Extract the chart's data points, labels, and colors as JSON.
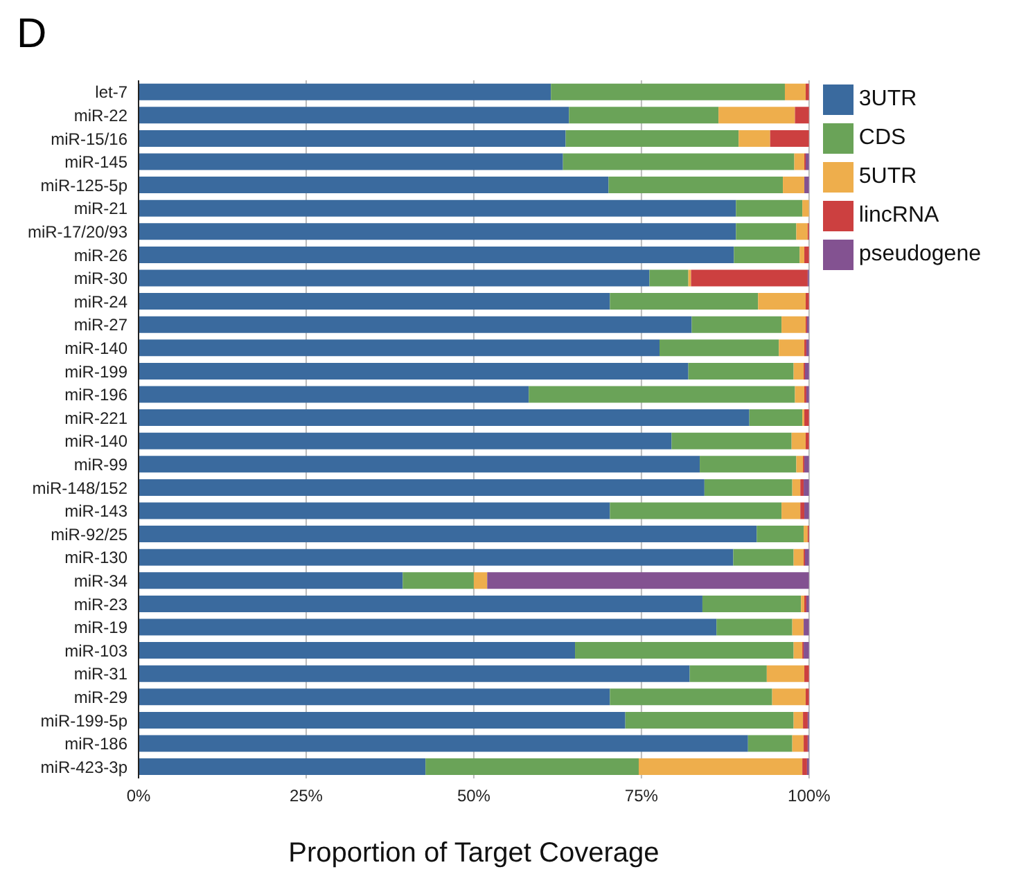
{
  "chart_data": {
    "type": "bar",
    "title": "D",
    "orientation": "horizontal",
    "stacked": true,
    "xlabel": "Proportion of Target Coverage",
    "grid": "x",
    "legend": "top right",
    "categories": [
      "let-7",
      "miR-22",
      "miR-15/16",
      "miR-145",
      "miR-125-5p",
      "miR-21",
      "miR-17/20/93",
      "miR-26",
      "miR-30",
      "miR-24",
      "miR-27",
      "miR-140",
      "miR-199",
      "miR-196",
      "miR-221",
      "miR-140",
      "miR-99",
      "miR-148/152",
      "miR-143",
      "miR-92/25",
      "miR-130",
      "miR-34",
      "miR-23",
      "miR-19",
      "miR-103",
      "miR-31",
      "miR-29",
      "miR-199-5p",
      "miR-186",
      "miR-423-3p"
    ],
    "xlim": [
      0,
      100
    ],
    "xticks": [
      {
        "value": 0,
        "label": "0%"
      },
      {
        "value": 25,
        "label": "25%"
      },
      {
        "value": 50,
        "label": "50%"
      },
      {
        "value": 75,
        "label": "75%"
      },
      {
        "value": 100,
        "label": "100%"
      }
    ],
    "series": [
      {
        "name": "3UTR",
        "color": "#3a6a9e",
        "values": [
          61.5,
          64.2,
          63.7,
          63.3,
          70.1,
          89.1,
          89.1,
          88.8,
          76.2,
          70.3,
          82.5,
          77.7,
          82.0,
          58.2,
          91.1,
          79.5,
          83.7,
          84.4,
          70.3,
          92.2,
          88.7,
          39.4,
          84.1,
          86.2,
          65.1,
          82.2,
          70.3,
          72.6,
          90.9,
          42.8
        ]
      },
      {
        "name": "CDS",
        "color": "#6aa358",
        "values": [
          34.9,
          22.3,
          25.8,
          34.5,
          26.0,
          9.9,
          9.0,
          9.8,
          5.8,
          22.1,
          13.4,
          17.8,
          15.7,
          39.7,
          7.9,
          17.9,
          14.4,
          13.1,
          25.6,
          7.0,
          9.0,
          10.6,
          14.7,
          11.3,
          32.6,
          11.5,
          24.2,
          25.1,
          6.6,
          31.8
        ]
      },
      {
        "name": "5UTR",
        "color": "#eeae4c",
        "values": [
          3.1,
          11.4,
          4.7,
          1.5,
          3.2,
          1.0,
          1.7,
          0.7,
          0.4,
          7.1,
          3.6,
          3.8,
          1.5,
          1.4,
          0.3,
          2.1,
          1.0,
          1.2,
          2.8,
          0.6,
          1.5,
          2.0,
          0.5,
          1.7,
          1.3,
          5.6,
          5.0,
          1.4,
          1.7,
          24.4
        ]
      },
      {
        "name": "lincRNA",
        "color": "#cc4040",
        "values": [
          0.5,
          2.1,
          5.8,
          0.2,
          0,
          0,
          0.2,
          0.7,
          17.4,
          0.5,
          0.2,
          0.3,
          0.2,
          0.3,
          0.7,
          0.5,
          0.2,
          0.5,
          0.6,
          0.2,
          0.2,
          0,
          0.3,
          0,
          0.2,
          0.7,
          0.5,
          0.7,
          0.6,
          0.7
        ]
      },
      {
        "name": "pseudogene",
        "color": "#835291",
        "values": [
          0,
          0,
          0,
          0.5,
          0.7,
          0,
          0,
          0,
          0.2,
          0,
          0.3,
          0.4,
          0.6,
          0.4,
          0,
          0,
          0.7,
          0.8,
          0.7,
          0,
          0.6,
          48.0,
          0.4,
          0.8,
          0.8,
          0,
          0,
          0.2,
          0.2,
          0.3
        ]
      }
    ]
  }
}
